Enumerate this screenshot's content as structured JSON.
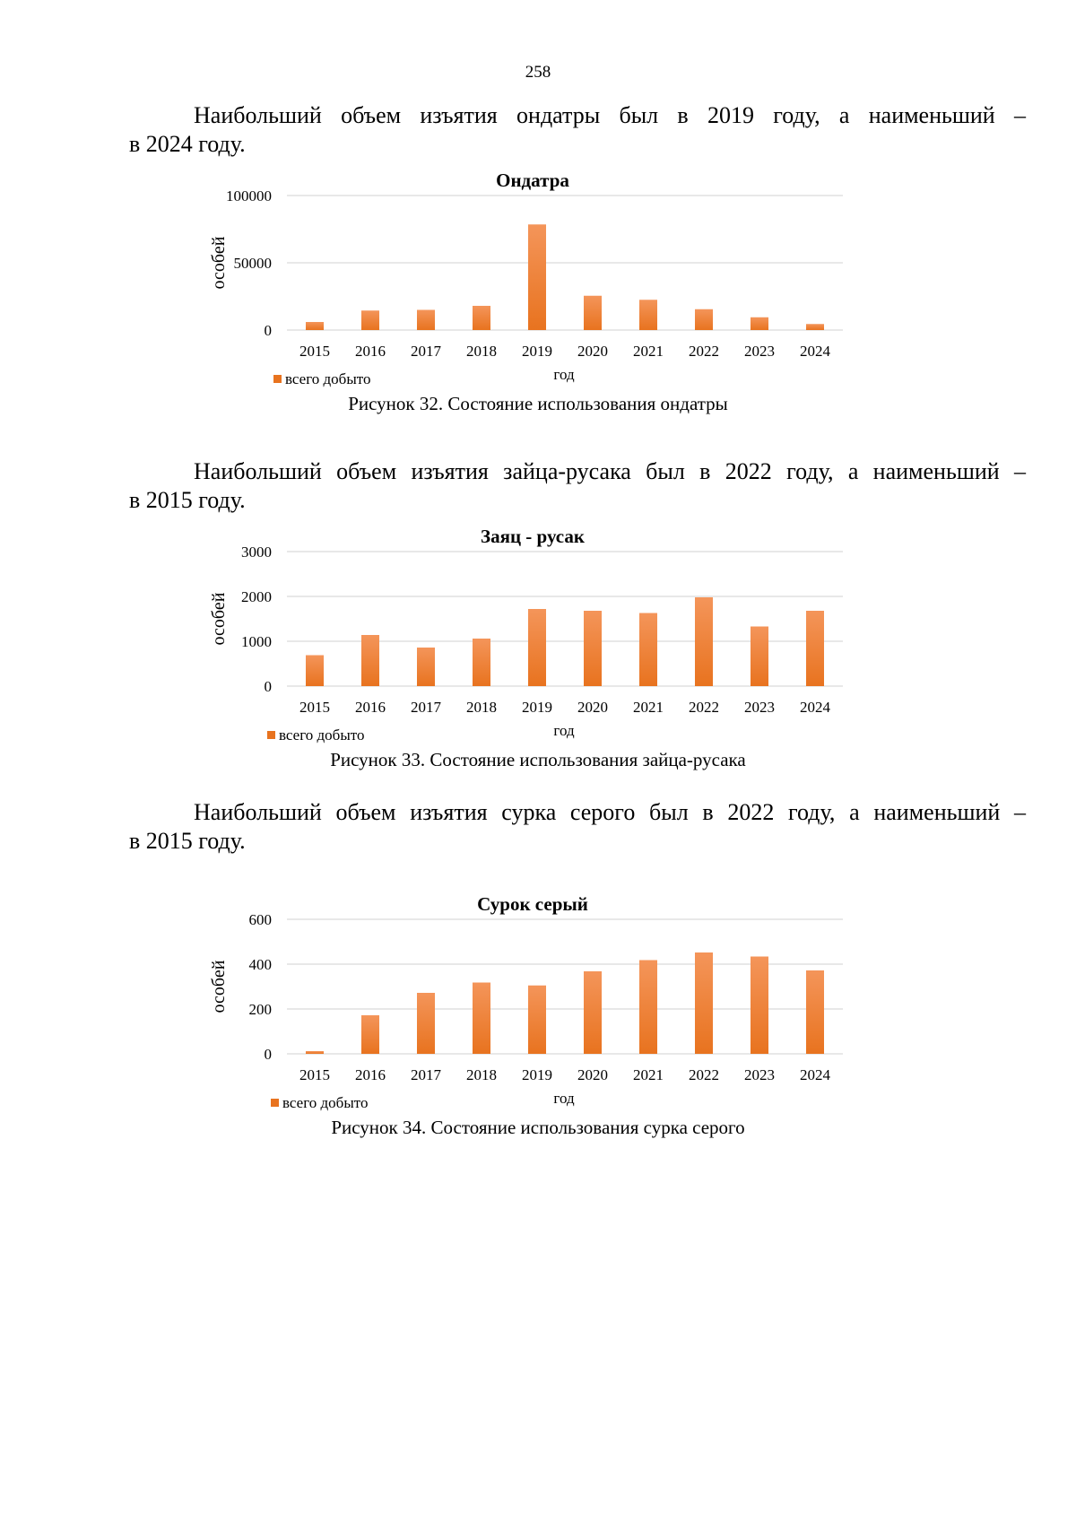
{
  "page_number": "258",
  "sections": [
    {
      "paragraph": {
        "line1": "Наибольший объем изъятия ондатры был в 2019 году, а наименьший –",
        "line2": "в 2024 году."
      },
      "caption": "Рисунок 32. Состояние использования ондатры"
    },
    {
      "paragraph": {
        "line1": "Наибольший объем изъятия зайца-русака был в 2022 году, а наименьший –",
        "line2": "в 2015 году."
      },
      "caption": "Рисунок 33. Состояние использования зайца-русака"
    },
    {
      "paragraph": {
        "line1": "Наибольший объем изъятия сурка серого был в 2022 году, а наименьший –",
        "line2": "в 2015 году."
      },
      "caption": "Рисунок 34. Состояние использования сурка серого"
    }
  ],
  "colors": {
    "bar_top": "#F4955A",
    "bar_bottom": "#E8731F",
    "grid": "#d9d9d9"
  },
  "chart_data": [
    {
      "type": "bar",
      "title": "Ондатра",
      "xlabel": "год",
      "ylabel": "особей",
      "legend": "всего добыто",
      "categories": [
        "2015",
        "2016",
        "2017",
        "2018",
        "2019",
        "2020",
        "2021",
        "2022",
        "2023",
        "2024"
      ],
      "values": [
        6000,
        14500,
        15000,
        18000,
        78500,
        25500,
        22500,
        15500,
        9500,
        4500
      ],
      "yticks": [
        0,
        50000,
        100000
      ],
      "ylim": [
        0,
        100000
      ]
    },
    {
      "type": "bar",
      "title": "Заяц - русак",
      "xlabel": "год",
      "ylabel": "особей",
      "legend": "всего добыто",
      "categories": [
        "2015",
        "2016",
        "2017",
        "2018",
        "2019",
        "2020",
        "2021",
        "2022",
        "2023",
        "2024"
      ],
      "values": [
        690,
        1140,
        860,
        1060,
        1720,
        1680,
        1630,
        1980,
        1330,
        1680
      ],
      "yticks": [
        0,
        1000,
        2000,
        3000
      ],
      "ylim": [
        0,
        3000
      ]
    },
    {
      "type": "bar",
      "title": "Сурок серый",
      "xlabel": "год",
      "ylabel": "особей",
      "legend": "всего добыто",
      "categories": [
        "2015",
        "2016",
        "2017",
        "2018",
        "2019",
        "2020",
        "2021",
        "2022",
        "2023",
        "2024"
      ],
      "values": [
        12,
        172,
        272,
        318,
        305,
        368,
        418,
        452,
        434,
        372
      ],
      "yticks": [
        0,
        200,
        400,
        600
      ],
      "ylim": [
        0,
        600
      ]
    }
  ]
}
